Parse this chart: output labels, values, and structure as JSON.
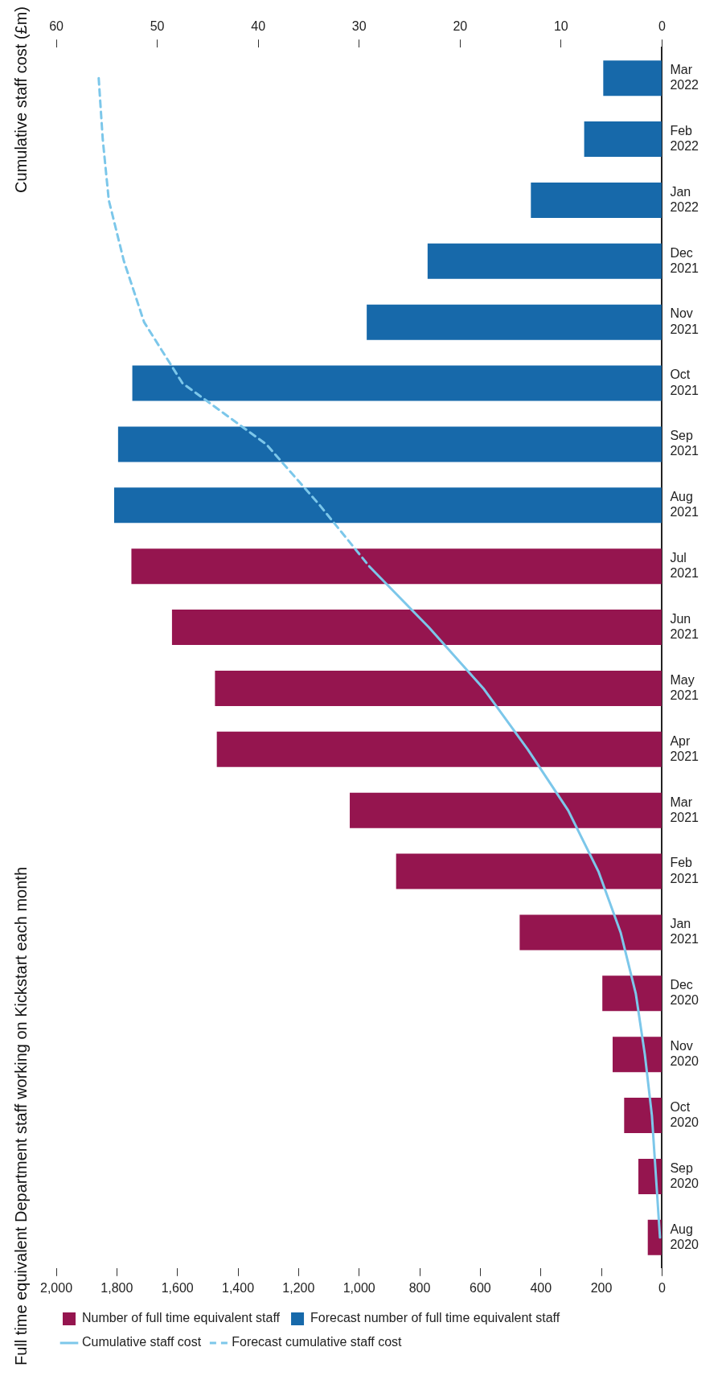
{
  "chart_data": {
    "type": "bar",
    "orientation": "horizontal",
    "title": "Full time equivalent Department staff working on Kickstart each month",
    "x2label": "Cumulative staff cost (£m)",
    "categories": [
      "Mar\n2022",
      "Feb\n2022",
      "Jan\n2022",
      "Dec\n2021",
      "Nov\n2021",
      "Oct\n2021",
      "Sep\n2021",
      "Aug\n2021",
      "Jul\n2021",
      "Jun\n2021",
      "May\n2021",
      "Apr\n2021",
      "Mar\n2021",
      "Feb\n2021",
      "Jan\n2021",
      "Dec\n2020",
      "Nov\n2020",
      "Oct\n2020",
      "Sep\n2020",
      "Aug\n2020"
    ],
    "series": [
      {
        "name": "Number of full time equivalent staff",
        "color": "#95154f",
        "values": [
          null,
          null,
          null,
          null,
          null,
          null,
          null,
          null,
          1752,
          1618,
          1476,
          1470,
          1031,
          878,
          470,
          197,
          163,
          125,
          78,
          47
        ]
      },
      {
        "name": "Forecast number of full time equivalent staff",
        "color": "#1769aa",
        "values": [
          194,
          257,
          433,
          774,
          975,
          1749,
          1796,
          1809,
          null,
          null,
          null,
          null,
          null,
          null,
          null,
          null,
          null,
          null,
          null,
          null
        ]
      },
      {
        "name": "Cumulative staff cost",
        "type": "line",
        "axis": "x2",
        "color": "#7cc7ea",
        "line_style": "solid",
        "values": [
          null,
          null,
          null,
          null,
          null,
          null,
          null,
          null,
          29.0,
          23.1,
          17.7,
          13.3,
          9.3,
          6.3,
          4.1,
          2.6,
          1.7,
          1.0,
          0.6,
          0.2
        ]
      },
      {
        "name": "Forecast cumulative staff cost",
        "type": "line",
        "axis": "x2",
        "color": "#7cc7ea",
        "line_style": "dashed",
        "values": [
          55.8,
          55.4,
          54.8,
          53.3,
          51.3,
          47.5,
          39.2,
          33.9,
          29.0,
          null,
          null,
          null,
          null,
          null,
          null,
          null,
          null,
          null,
          null,
          null
        ]
      }
    ],
    "xlim": [
      2000,
      0
    ],
    "xticks": [
      {
        "value": 2000,
        "label": "2,000"
      },
      {
        "value": 1800,
        "label": "1,800"
      },
      {
        "value": 1600,
        "label": "1,600"
      },
      {
        "value": 1400,
        "label": "1,400"
      },
      {
        "value": 1200,
        "label": "1,200"
      },
      {
        "value": 1000,
        "label": "1,000"
      },
      800,
      600,
      400,
      200,
      0
    ],
    "x2lim": [
      60,
      0
    ],
    "x2ticks": [
      60,
      50,
      40,
      30,
      20,
      10,
      0
    ],
    "marker": "none",
    "grid": false,
    "legend": "bottom"
  }
}
